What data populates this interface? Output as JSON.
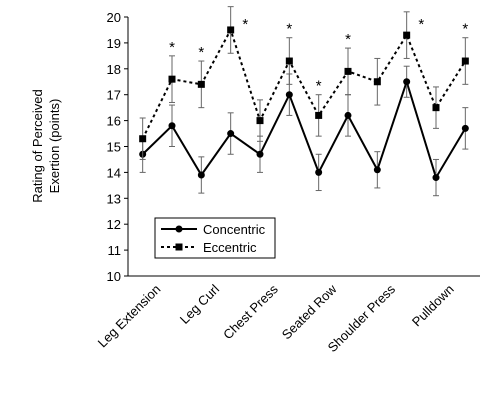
{
  "chart_data": {
    "type": "line",
    "ylabel_lines": [
      "Rating of Perceived",
      "Exertion (points)"
    ],
    "categories": [
      "Leg Extension",
      null,
      "Leg Curl",
      null,
      "Chest Press",
      null,
      "Seated Row",
      null,
      "Shoulder Press",
      null,
      "Pulldown",
      null
    ],
    "series": [
      {
        "name": "Concentric",
        "color": "#000000",
        "dash": false,
        "marker": "circle",
        "values": [
          14.7,
          15.8,
          13.9,
          15.5,
          14.7,
          17.0,
          14.0,
          16.2,
          14.1,
          17.5,
          13.8,
          15.7
        ],
        "errors": [
          0.7,
          0.8,
          0.7,
          0.8,
          0.7,
          0.8,
          0.7,
          0.8,
          0.7,
          0.6,
          0.7,
          0.8
        ]
      },
      {
        "name": "Eccentric",
        "color": "#000000",
        "dash": true,
        "marker": "square",
        "values": [
          15.3,
          17.6,
          17.4,
          19.5,
          16.0,
          18.3,
          16.2,
          17.9,
          17.5,
          19.3,
          16.5,
          18.3
        ],
        "errors": [
          0.8,
          0.9,
          0.9,
          0.9,
          0.8,
          0.9,
          0.8,
          0.9,
          0.9,
          0.9,
          0.8,
          0.9
        ]
      }
    ],
    "annotations": [
      null,
      "*",
      "*",
      "*",
      null,
      "*",
      "*",
      "*",
      null,
      "*",
      null,
      "*"
    ],
    "ylim": [
      10,
      20
    ],
    "yticks": [
      10,
      11,
      12,
      13,
      14,
      15,
      16,
      17,
      18,
      19,
      20
    ],
    "legend": "lower-left"
  }
}
